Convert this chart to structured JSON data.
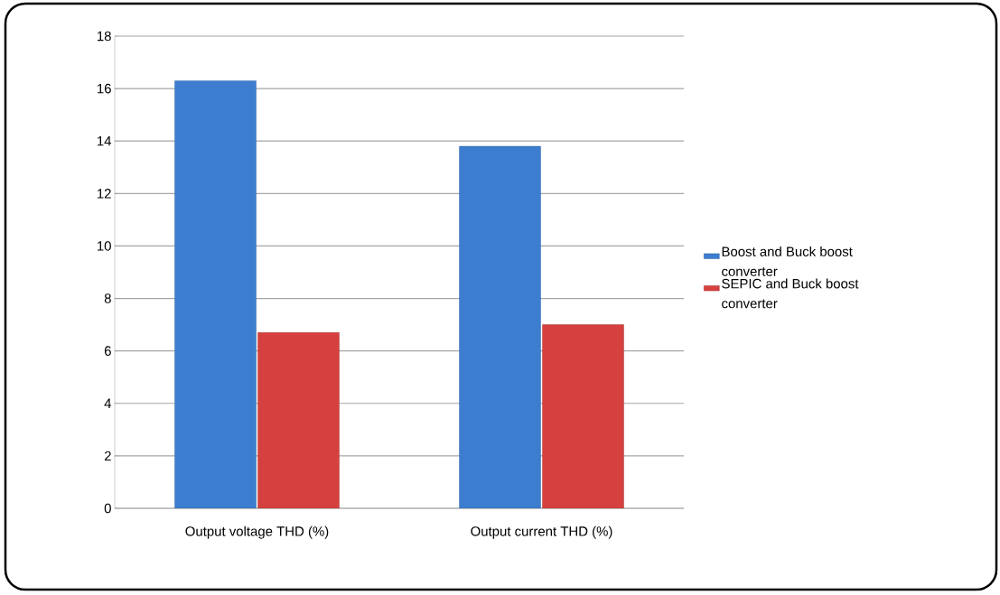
{
  "chart_data": {
    "type": "bar",
    "categories": [
      "Output voltage  THD (%)",
      "Output current THD (%)"
    ],
    "series": [
      {
        "name": "Boost and Buck boost converter",
        "color": "#3c7dd0",
        "values": [
          16.3,
          13.8
        ]
      },
      {
        "name": "SEPIC and Buck boost converter",
        "color": "#d6403e",
        "values": [
          6.7,
          7.0
        ]
      }
    ],
    "ylim": [
      0,
      18
    ],
    "yticks": [
      0,
      2,
      4,
      6,
      8,
      10,
      12,
      14,
      16,
      18
    ],
    "grid": "y",
    "legend": "right"
  }
}
